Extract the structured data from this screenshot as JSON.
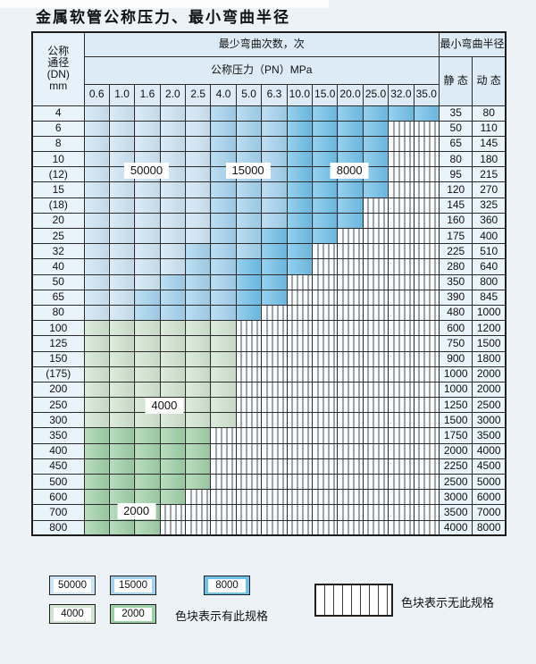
{
  "page_title": "金属软管公称压力、最小弯曲半径",
  "colors": {
    "c50000": "#cde4f4",
    "c15000": "#a3d2ee",
    "c8000": "#6fbfe8",
    "c4000": "#d0e4cf",
    "c2000": "#9ed0a7",
    "header_bg": "#dcebf5",
    "hatch_bg": "#f8fbfd",
    "grid_line": "#2b2b2b",
    "page_bg": "#ecf2f6"
  },
  "chart_data": {
    "type": "heatmap",
    "title": "金属软管公称压力、最小弯曲半径",
    "cycles_header": "最少弯曲次数，次",
    "pressure_header": "公称压力（PN）MPa",
    "row_header_lines": [
      "公称",
      "通径",
      "(DN)",
      "mm"
    ],
    "radius_header": "最小弯曲半径",
    "static_header": "静 态",
    "dynamic_header": "动 态",
    "pressures": [
      "0.6",
      "1.0",
      "1.6",
      "2.0",
      "2.5",
      "4.0",
      "5.0",
      "6.3",
      "10.0",
      "15.0",
      "20.0",
      "25.0",
      "32.0",
      "35.0"
    ],
    "cell_legend": {
      "L": 50000,
      "M": 15000,
      "D": 8000,
      "4": 4000,
      "2": 2000,
      ".": "no-spec"
    },
    "rows": [
      {
        "dn": "4",
        "cells": "LLLLLMMMDDDDDD",
        "static": "35",
        "dynamic": "80"
      },
      {
        "dn": "6",
        "cells": "LLLLLMMMDDDD..",
        "static": "50",
        "dynamic": "110"
      },
      {
        "dn": "8",
        "cells": "LLLLLMMMDDDD..",
        "static": "65",
        "dynamic": "145"
      },
      {
        "dn": "10",
        "cells": "LLLLLMMMDDDD..",
        "static": "80",
        "dynamic": "180"
      },
      {
        "dn": "(12)",
        "cells": "LLLLLMMMDDDD..",
        "static": "95",
        "dynamic": "215"
      },
      {
        "dn": "15",
        "cells": "LLLLLMMMDDDD..",
        "static": "120",
        "dynamic": "270"
      },
      {
        "dn": "(18)",
        "cells": "LLLLLMMMDDD...",
        "static": "145",
        "dynamic": "325"
      },
      {
        "dn": "20",
        "cells": "LLLLLMMMDDD...",
        "static": "160",
        "dynamic": "360"
      },
      {
        "dn": "25",
        "cells": "LLLLLMMDDD....",
        "static": "175",
        "dynamic": "400"
      },
      {
        "dn": "32",
        "cells": "LLLLMMMDD.....",
        "static": "225",
        "dynamic": "510"
      },
      {
        "dn": "40",
        "cells": "LLLLMMDDD.....",
        "static": "280",
        "dynamic": "640"
      },
      {
        "dn": "50",
        "cells": "LLLMMMDD......",
        "static": "350",
        "dynamic": "800"
      },
      {
        "dn": "65",
        "cells": "LLMMMMDD......",
        "static": "390",
        "dynamic": "845"
      },
      {
        "dn": "80",
        "cells": "LLMMMMD.......",
        "static": "480",
        "dynamic": "1000"
      },
      {
        "dn": "100",
        "cells": "444444........",
        "static": "600",
        "dynamic": "1200"
      },
      {
        "dn": "125",
        "cells": "444444........",
        "static": "750",
        "dynamic": "1500"
      },
      {
        "dn": "150",
        "cells": "444444........",
        "static": "900",
        "dynamic": "1800"
      },
      {
        "dn": "(175)",
        "cells": "444444........",
        "static": "1000",
        "dynamic": "2000"
      },
      {
        "dn": "200",
        "cells": "444444........",
        "static": "1000",
        "dynamic": "2000"
      },
      {
        "dn": "250",
        "cells": "444444........",
        "static": "1250",
        "dynamic": "2500"
      },
      {
        "dn": "300",
        "cells": "444444........",
        "static": "1500",
        "dynamic": "3000"
      },
      {
        "dn": "350",
        "cells": "22222.........",
        "static": "1750",
        "dynamic": "3500"
      },
      {
        "dn": "400",
        "cells": "22222.........",
        "static": "2000",
        "dynamic": "4000"
      },
      {
        "dn": "450",
        "cells": "22222.........",
        "static": "2250",
        "dynamic": "4500"
      },
      {
        "dn": "500",
        "cells": "22222.........",
        "static": "2500",
        "dynamic": "5000"
      },
      {
        "dn": "600",
        "cells": "2222..........",
        "static": "3000",
        "dynamic": "6000"
      },
      {
        "dn": "700",
        "cells": "222...........",
        "static": "3500",
        "dynamic": "7000"
      },
      {
        "dn": "800",
        "cells": "222...........",
        "static": "4000",
        "dynamic": "8000"
      }
    ],
    "floating_labels": [
      {
        "text": "50000",
        "row": 3.5,
        "col": 2.0
      },
      {
        "text": "15000",
        "row": 3.5,
        "col": 6.0
      },
      {
        "text": "8000",
        "row": 3.5,
        "col": 10.0
      },
      {
        "text": "4000",
        "row": 18.0,
        "col": 2.7
      },
      {
        "text": "2000",
        "row": 24.5,
        "col": 1.6
      }
    ]
  },
  "legend": {
    "has_spec_items": [
      {
        "label": "50000",
        "key": "L"
      },
      {
        "label": "15000",
        "key": "M"
      },
      {
        "label": "8000",
        "key": "D"
      },
      {
        "label": "4000",
        "key": "4"
      },
      {
        "label": "2000",
        "key": "2"
      }
    ],
    "has_spec_note": "色块表示有此规格",
    "no_spec_note": "色块表示无此规格"
  }
}
